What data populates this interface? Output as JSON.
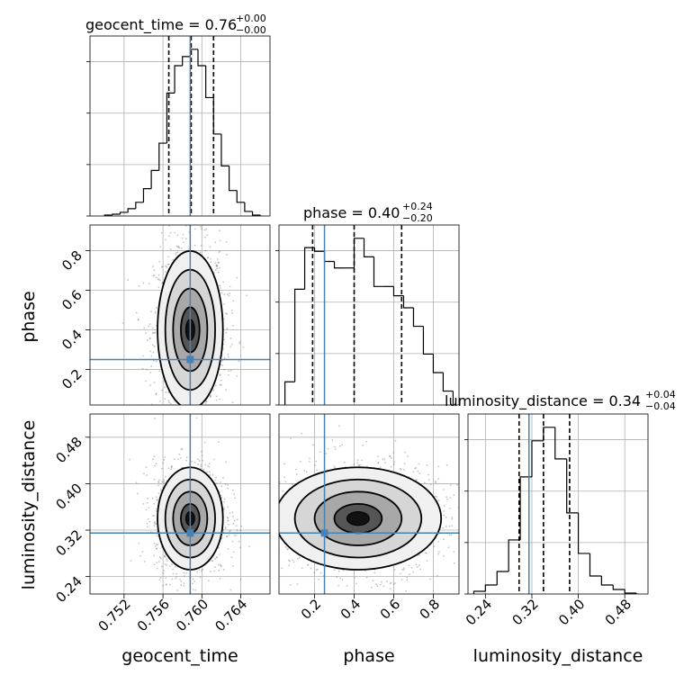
{
  "chart_data": {
    "type": "corner",
    "parameters": [
      "geocent_time",
      "phase",
      "luminosity_distance"
    ],
    "truths": {
      "geocent_time": 0.7588,
      "phase": 0.25,
      "luminosity_distance": 0.315
    },
    "titles": [
      {
        "param": "geocent_time",
        "main": "geocent_time = 0.76",
        "plus": "+0.00",
        "minus": "−0.00"
      },
      {
        "param": "phase",
        "main": "phase = 0.40",
        "plus": "+0.24",
        "minus": "−0.20"
      },
      {
        "param": "luminosity_distance",
        "main": "luminosity_distance = 0.34",
        "plus": "+0.04",
        "minus": "−0.04"
      }
    ],
    "ranges": {
      "geocent_time": [
        0.7485,
        0.767
      ],
      "phase": [
        0.02,
        0.93
      ],
      "luminosity_distance": [
        0.21,
        0.52
      ]
    },
    "ticks": {
      "geocent_time": [
        0.752,
        0.756,
        0.76,
        0.764
      ],
      "geocent_time_labels": [
        "0.752",
        "0.756",
        "0.760",
        "0.764"
      ],
      "phase": [
        0.2,
        0.4,
        0.6,
        0.8
      ],
      "phase_labels": [
        "0.2",
        "0.4",
        "0.6",
        "0.8"
      ],
      "luminosity_distance": [
        0.24,
        0.32,
        0.4,
        0.48
      ],
      "luminosity_distance_labels": [
        "0.24",
        "0.32",
        "0.40",
        "0.48"
      ]
    },
    "quantiles": {
      "geocent_time": [
        0.7566,
        0.7589,
        0.7612
      ],
      "phase": [
        0.19,
        0.4,
        0.64
      ],
      "luminosity_distance": [
        0.298,
        0.34,
        0.385
      ]
    },
    "marginals": {
      "geocent_time": {
        "edges": [
          0.75,
          0.7508,
          0.7516,
          0.7524,
          0.7532,
          0.754,
          0.7548,
          0.7556,
          0.7564,
          0.7572,
          0.758,
          0.7588,
          0.7596,
          0.7604,
          0.7612,
          0.762,
          0.7628,
          0.7636,
          0.7644,
          0.7652,
          0.766
        ],
        "counts": [
          1,
          2,
          4,
          8,
          15,
          30,
          50,
          80,
          135,
          165,
          175,
          183,
          165,
          130,
          90,
          55,
          28,
          15,
          5,
          1
        ]
      },
      "phase": {
        "edges": [
          0.05,
          0.1,
          0.15,
          0.2,
          0.25,
          0.3,
          0.35,
          0.4,
          0.45,
          0.5,
          0.55,
          0.6,
          0.65,
          0.7,
          0.75,
          0.8,
          0.85,
          0.9
        ],
        "counts": [
          25,
          125,
          170,
          166,
          155,
          148,
          148,
          180,
          160,
          128,
          128,
          118,
          105,
          85,
          55,
          35,
          15
        ]
      },
      "luminosity_distance": {
        "edges": [
          0.22,
          0.24,
          0.26,
          0.28,
          0.3,
          0.32,
          0.34,
          0.36,
          0.38,
          0.4,
          0.42,
          0.44,
          0.46,
          0.48,
          0.5
        ],
        "counts": [
          3,
          10,
          25,
          60,
          130,
          170,
          185,
          150,
          90,
          45,
          20,
          10,
          5,
          1
        ]
      }
    },
    "density": {
      "geocent_time_vs_phase": {
        "center": [
          0.7588,
          0.4
        ],
        "sd": [
          0.0016,
          0.19
        ]
      },
      "geocent_time_vs_luminosity_distance": {
        "center": [
          0.7588,
          0.34
        ],
        "sd": [
          0.0016,
          0.042
        ]
      },
      "phase_vs_luminosity_distance": {
        "center": [
          0.42,
          0.34
        ],
        "sd": [
          0.2,
          0.042
        ]
      }
    },
    "colors": {
      "truth": "#4682b4",
      "hist": "#000000",
      "scatter": "#555555",
      "grid": "#b0b0b0"
    }
  }
}
